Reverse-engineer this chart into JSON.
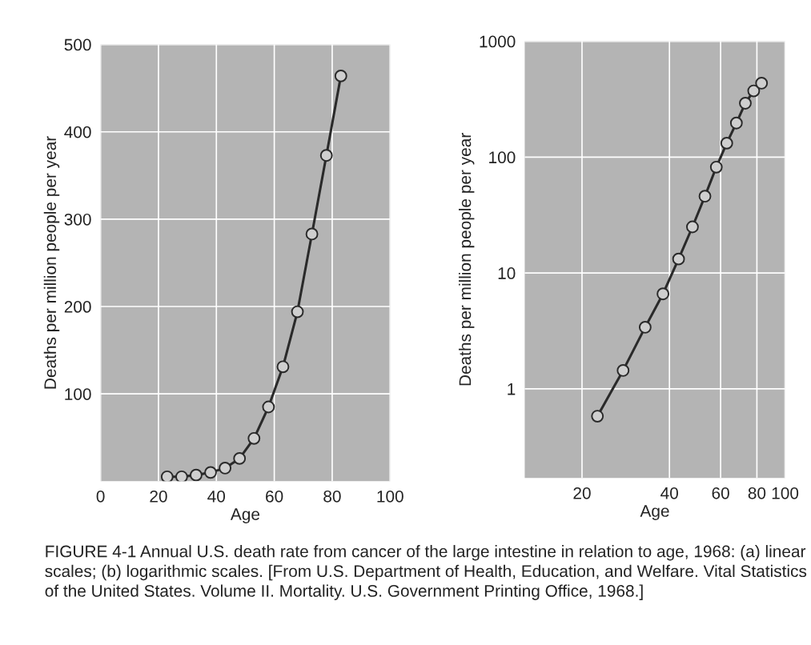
{
  "chart_data": [
    {
      "type": "line",
      "xlabel": "Age",
      "ylabel": "Deaths per million people per year",
      "x": [
        23,
        28,
        33,
        38,
        43,
        48,
        53,
        58,
        63,
        68,
        73,
        78,
        83
      ],
      "series": [
        {
          "color": "#2a2a2a",
          "values": [
            5,
            5,
            7,
            10,
            15,
            26,
            49,
            85,
            131,
            194,
            283,
            373,
            464
          ]
        }
      ],
      "xlim": [
        0,
        100
      ],
      "ylim": [
        0,
        500
      ],
      "xticks": [
        0,
        20,
        40,
        60,
        80,
        100
      ],
      "yticks": [
        100,
        200,
        300,
        400,
        500
      ],
      "grid": true,
      "marker": "circle",
      "line_style": "solid",
      "annotations": [
        "FIGURE 4-1 Annual U.S. death rate from cancer of the large intestine in relation to age, 1968: (a) linear scales; (b) logarithmic scales. [From U.S. Department of Health, Education, and Welfare. Vital Statistics of the United States. Volume II. Mortality. U.S. Government Printing Office, 1968.]"
      ]
    },
    {
      "type": "line",
      "xlabel": "Age",
      "ylabel": "Deaths per million people per year",
      "x": [
        22.6,
        27.7,
        33,
        38,
        43,
        48,
        53,
        58,
        63,
        68,
        73,
        78,
        83
      ],
      "series": [
        {
          "color": "#2a2a2a",
          "values": [
            0.58,
            1.44,
            3.4,
            6.6,
            13.2,
            25,
            46,
            82,
            132,
            197,
            292,
            373,
            435
          ]
        }
      ],
      "log": "xy",
      "xlim": [
        12.7,
        100
      ],
      "ylim": [
        0.17,
        1000
      ],
      "xticks": [
        20,
        40,
        60,
        80,
        100
      ],
      "yticks": [
        1,
        10,
        100,
        1000
      ],
      "grid": true,
      "marker": "circle",
      "line_style": "solid"
    }
  ]
}
